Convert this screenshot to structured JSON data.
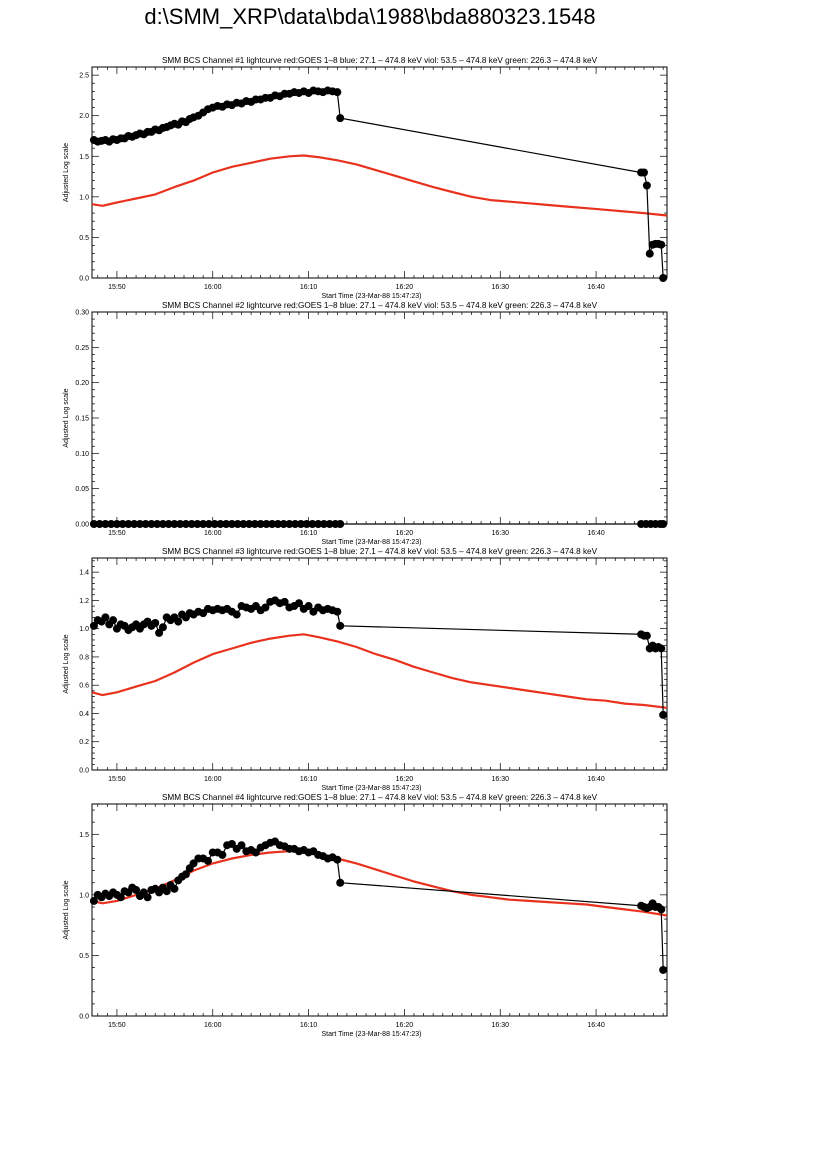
{
  "page": {
    "title": "d:\\SMM_XRP\\data\\bda\\1988\\bda880323.1548"
  },
  "chart_data": [
    {
      "type": "line",
      "title": "SMM BCS Channel #1 lightcurve  red:GOES 1–8  blue: 27.1 – 474.8 keV  viol: 53.5 – 474.8 keV  green: 226.3 – 474.8 keV",
      "xlabel": "Start Time (23-Mar-88 15:47:23)",
      "ylabel": "Adjusted Log scale",
      "x_unit": "minutes after 15:00",
      "xlim": [
        47.4,
        107.4
      ],
      "ylim": [
        0,
        2.6
      ],
      "x_ticks": [
        50,
        60,
        70,
        80,
        90,
        100
      ],
      "x_tick_labels": [
        "15:50",
        "16:00",
        "16:10",
        "16:20",
        "16:30",
        "16:40"
      ],
      "y_ticks": [
        0,
        0.5,
        1.0,
        1.5,
        2.0,
        2.5
      ],
      "y_tick_labels": [
        "0.0",
        "0.5",
        "1.0",
        "1.5",
        "2.0",
        "2.5"
      ],
      "series": [
        {
          "color": "#e8321e",
          "marker": "none",
          "x": [
            47.4,
            48.5,
            50,
            52,
            54,
            56,
            58,
            60,
            62,
            64,
            66,
            68,
            69.5,
            71,
            73,
            75,
            77,
            79,
            81,
            83,
            85,
            87,
            89,
            91,
            93,
            95,
            97,
            99,
            101,
            103,
            105,
            107.4
          ],
          "y": [
            0.91,
            0.89,
            0.93,
            0.98,
            1.03,
            1.12,
            1.2,
            1.3,
            1.37,
            1.42,
            1.47,
            1.5,
            1.51,
            1.49,
            1.45,
            1.4,
            1.33,
            1.26,
            1.19,
            1.12,
            1.06,
            1.0,
            0.96,
            0.94,
            0.92,
            0.9,
            0.88,
            0.86,
            0.84,
            0.82,
            0.8,
            0.77
          ]
        },
        {
          "color": "#000000",
          "marker": "circle",
          "x": [
            47.6,
            48.0,
            48.4,
            48.8,
            49.2,
            49.6,
            50.0,
            50.4,
            50.8,
            51.2,
            51.6,
            52.0,
            52.4,
            52.8,
            53.2,
            53.6,
            54.0,
            54.4,
            54.8,
            55.2,
            55.6,
            56.0,
            56.4,
            56.8,
            57.2,
            57.6,
            58.0,
            58.5,
            59.0,
            59.5,
            60.0,
            60.5,
            61.0,
            61.5,
            62.0,
            62.5,
            63.0,
            63.5,
            64.0,
            64.5,
            65.0,
            65.5,
            66.0,
            66.5,
            67.0,
            67.5,
            68.0,
            68.5,
            69.0,
            69.5,
            70.0,
            70.5,
            71.0,
            71.5,
            72.0,
            72.5,
            73.0,
            73.3,
            104.7,
            105.0,
            105.3,
            105.6,
            105.9,
            106.2,
            106.5,
            106.8,
            107.0
          ],
          "y": [
            1.7,
            1.68,
            1.69,
            1.7,
            1.68,
            1.71,
            1.7,
            1.72,
            1.72,
            1.75,
            1.74,
            1.76,
            1.78,
            1.77,
            1.8,
            1.8,
            1.83,
            1.82,
            1.85,
            1.86,
            1.88,
            1.9,
            1.89,
            1.93,
            1.92,
            1.96,
            1.98,
            2.0,
            2.04,
            2.08,
            2.1,
            2.12,
            2.11,
            2.14,
            2.13,
            2.16,
            2.15,
            2.18,
            2.17,
            2.2,
            2.2,
            2.22,
            2.22,
            2.25,
            2.24,
            2.27,
            2.27,
            2.29,
            2.28,
            2.3,
            2.28,
            2.31,
            2.3,
            2.29,
            2.31,
            2.3,
            2.29,
            1.97,
            1.3,
            1.3,
            1.14,
            0.3,
            0.41,
            0.42,
            0.42,
            0.41,
            0.0
          ]
        }
      ]
    },
    {
      "type": "line",
      "title": "SMM BCS Channel #2 lightcurve  red:GOES 1–8  blue: 27.1 – 474.8 keV  viol: 53.5 – 474.8 keV  green: 226.3 – 474.8 keV",
      "xlabel": "Start Time (23-Mar-88 15:47:23)",
      "ylabel": "Adjusted Log scale",
      "x_unit": "minutes after 15:00",
      "xlim": [
        47.4,
        107.4
      ],
      "ylim": [
        0,
        0.3
      ],
      "x_ticks": [
        50,
        60,
        70,
        80,
        90,
        100
      ],
      "x_tick_labels": [
        "15:50",
        "16:00",
        "16:10",
        "16:20",
        "16:30",
        "16:40"
      ],
      "y_ticks": [
        0,
        0.05,
        0.1,
        0.15,
        0.2,
        0.25,
        0.3
      ],
      "y_tick_labels": [
        "0.00",
        "0.05",
        "0.10",
        "0.15",
        "0.20",
        "0.25",
        "0.30"
      ],
      "series": [
        {
          "color": "#000000",
          "marker": "circle",
          "x": [
            47.6,
            48.2,
            48.8,
            49.4,
            50.0,
            50.6,
            51.2,
            51.8,
            52.4,
            53.0,
            53.6,
            54.2,
            54.8,
            55.4,
            56.0,
            56.6,
            57.2,
            57.8,
            58.4,
            59.0,
            59.6,
            60.2,
            60.8,
            61.4,
            62.0,
            62.6,
            63.2,
            63.8,
            64.4,
            65.0,
            65.6,
            66.2,
            66.8,
            67.4,
            68.0,
            68.6,
            69.2,
            69.8,
            70.4,
            71.0,
            71.6,
            72.2,
            72.8,
            73.3,
            104.7,
            105.2,
            105.7,
            106.2,
            106.7,
            107.0
          ],
          "y": [
            0,
            0,
            0,
            0,
            0,
            0,
            0,
            0,
            0,
            0,
            0,
            0,
            0,
            0,
            0,
            0,
            0,
            0,
            0,
            0,
            0,
            0,
            0,
            0,
            0,
            0,
            0,
            0,
            0,
            0,
            0,
            0,
            0,
            0,
            0,
            0,
            0,
            0,
            0,
            0,
            0,
            0,
            0,
            0,
            0,
            0,
            0,
            0,
            0,
            0
          ]
        }
      ]
    },
    {
      "type": "line",
      "title": "SMM BCS Channel #3 lightcurve  red:GOES 1–8  blue: 27.1 – 474.8 keV  viol: 53.5 – 474.8 keV  green: 226.3 – 474.8 keV",
      "xlabel": "Start Time (23-Mar-88 15:47:23)",
      "ylabel": "Adjusted Log scale",
      "x_unit": "minutes after 15:00",
      "xlim": [
        47.4,
        107.4
      ],
      "ylim": [
        0,
        1.5
      ],
      "x_ticks": [
        50,
        60,
        70,
        80,
        90,
        100
      ],
      "x_tick_labels": [
        "15:50",
        "16:00",
        "16:10",
        "16:20",
        "16:30",
        "16:40"
      ],
      "y_ticks": [
        0,
        0.2,
        0.4,
        0.6,
        0.8,
        1.0,
        1.2,
        1.4
      ],
      "y_tick_labels": [
        "0.0",
        "0.2",
        "0.4",
        "0.6",
        "0.8",
        "1.0",
        "1.2",
        "1.4"
      ],
      "series": [
        {
          "color": "#e8321e",
          "marker": "none",
          "x": [
            47.4,
            48.5,
            50,
            52,
            54,
            56,
            58,
            60,
            62,
            64,
            66,
            68,
            69.5,
            71,
            73,
            75,
            77,
            79,
            81,
            83,
            85,
            87,
            89,
            91,
            93,
            95,
            97,
            99,
            101,
            103,
            105,
            107.4
          ],
          "y": [
            0.55,
            0.53,
            0.55,
            0.59,
            0.63,
            0.69,
            0.76,
            0.82,
            0.86,
            0.9,
            0.93,
            0.95,
            0.96,
            0.94,
            0.91,
            0.87,
            0.82,
            0.78,
            0.73,
            0.69,
            0.65,
            0.62,
            0.6,
            0.58,
            0.56,
            0.54,
            0.52,
            0.5,
            0.49,
            0.47,
            0.46,
            0.44
          ]
        },
        {
          "color": "#000000",
          "marker": "circle",
          "x": [
            47.6,
            48.0,
            48.4,
            48.8,
            49.2,
            49.6,
            50.0,
            50.4,
            50.8,
            51.2,
            51.6,
            52.0,
            52.4,
            52.8,
            53.2,
            53.6,
            54.0,
            54.4,
            54.8,
            55.2,
            55.6,
            56.0,
            56.4,
            56.8,
            57.2,
            57.6,
            58.0,
            58.5,
            59.0,
            59.5,
            60.0,
            60.5,
            61.0,
            61.5,
            62.0,
            62.5,
            63.0,
            63.5,
            64.0,
            64.5,
            65.0,
            65.5,
            66.0,
            66.5,
            67.0,
            67.5,
            68.0,
            68.5,
            69.0,
            69.5,
            70.0,
            70.5,
            71.0,
            71.5,
            72.0,
            72.5,
            73.0,
            73.3,
            104.7,
            105.0,
            105.3,
            105.6,
            105.9,
            106.2,
            106.5,
            106.8,
            107.0
          ],
          "y": [
            1.02,
            1.06,
            1.05,
            1.08,
            1.03,
            1.06,
            1.0,
            1.03,
            1.02,
            0.99,
            1.01,
            1.03,
            1.0,
            1.03,
            1.05,
            1.02,
            1.04,
            0.97,
            1.01,
            1.08,
            1.06,
            1.08,
            1.05,
            1.1,
            1.08,
            1.11,
            1.1,
            1.12,
            1.11,
            1.14,
            1.13,
            1.14,
            1.13,
            1.14,
            1.12,
            1.1,
            1.16,
            1.15,
            1.14,
            1.16,
            1.13,
            1.15,
            1.19,
            1.2,
            1.18,
            1.19,
            1.15,
            1.16,
            1.18,
            1.14,
            1.16,
            1.12,
            1.15,
            1.13,
            1.14,
            1.13,
            1.12,
            1.02,
            0.96,
            0.95,
            0.95,
            0.86,
            0.88,
            0.86,
            0.87,
            0.86,
            0.39
          ]
        }
      ]
    },
    {
      "type": "line",
      "title": "SMM BCS Channel #4 lightcurve  red:GOES 1–8  blue: 27.1 – 474.8 keV  viol: 53.5 – 474.8 keV  green: 226.3 – 474.8 keV",
      "xlabel": "Start Time (23-Mar-88 15:47:23)",
      "ylabel": "Adjusted Log scale",
      "x_unit": "minutes after 15:00",
      "xlim": [
        47.4,
        107.4
      ],
      "ylim": [
        0,
        1.75
      ],
      "x_ticks": [
        50,
        60,
        70,
        80,
        90,
        100
      ],
      "x_tick_labels": [
        "15:50",
        "16:00",
        "16:10",
        "16:20",
        "16:30",
        "16:40"
      ],
      "y_ticks": [
        0,
        0.5,
        1.0,
        1.5
      ],
      "y_tick_labels": [
        "0.0",
        "0.5",
        "1.0",
        "1.5"
      ],
      "series": [
        {
          "color": "#e8321e",
          "marker": "none",
          "x": [
            47.4,
            48.5,
            50,
            52,
            54,
            56,
            58,
            60,
            62,
            64,
            66,
            68,
            69.5,
            71,
            73,
            75,
            77,
            79,
            81,
            83,
            85,
            87,
            89,
            91,
            93,
            95,
            97,
            99,
            101,
            103,
            105,
            107.4
          ],
          "y": [
            0.95,
            0.93,
            0.95,
            1.0,
            1.05,
            1.12,
            1.2,
            1.26,
            1.3,
            1.33,
            1.35,
            1.36,
            1.36,
            1.34,
            1.3,
            1.26,
            1.21,
            1.16,
            1.11,
            1.07,
            1.03,
            1.0,
            0.98,
            0.96,
            0.95,
            0.94,
            0.93,
            0.92,
            0.9,
            0.88,
            0.86,
            0.83
          ]
        },
        {
          "color": "#000000",
          "marker": "circle",
          "x": [
            47.6,
            48.0,
            48.4,
            48.8,
            49.2,
            49.6,
            50.0,
            50.4,
            50.8,
            51.2,
            51.6,
            52.0,
            52.4,
            52.8,
            53.2,
            53.6,
            54.0,
            54.4,
            54.8,
            55.2,
            55.6,
            56.0,
            56.4,
            56.8,
            57.2,
            57.6,
            58.0,
            58.5,
            59.0,
            59.5,
            60.0,
            60.5,
            61.0,
            61.5,
            62.0,
            62.5,
            63.0,
            63.5,
            64.0,
            64.5,
            65.0,
            65.5,
            66.0,
            66.5,
            67.0,
            67.5,
            68.0,
            68.5,
            69.0,
            69.5,
            70.0,
            70.5,
            71.0,
            71.5,
            72.0,
            72.5,
            73.0,
            73.3,
            104.7,
            105.0,
            105.3,
            105.6,
            105.9,
            106.2,
            106.5,
            106.8,
            107.0
          ],
          "y": [
            0.95,
            1.0,
            0.98,
            1.01,
            0.99,
            1.02,
            1.0,
            0.98,
            1.03,
            1.02,
            1.06,
            1.04,
            0.99,
            1.02,
            0.98,
            1.04,
            1.05,
            1.02,
            1.06,
            1.03,
            1.08,
            1.05,
            1.12,
            1.15,
            1.17,
            1.22,
            1.26,
            1.3,
            1.3,
            1.28,
            1.35,
            1.35,
            1.33,
            1.41,
            1.42,
            1.38,
            1.41,
            1.36,
            1.37,
            1.35,
            1.39,
            1.41,
            1.43,
            1.44,
            1.41,
            1.4,
            1.38,
            1.38,
            1.36,
            1.37,
            1.35,
            1.36,
            1.33,
            1.32,
            1.3,
            1.31,
            1.29,
            1.1,
            0.91,
            0.9,
            0.89,
            0.9,
            0.93,
            0.9,
            0.9,
            0.88,
            0.38
          ]
        }
      ]
    }
  ]
}
